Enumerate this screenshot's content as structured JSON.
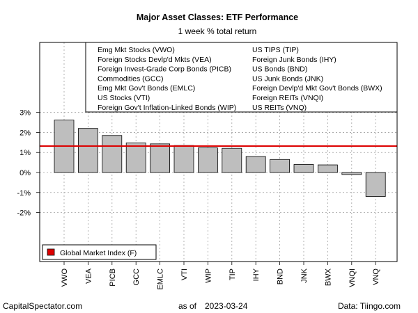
{
  "chart_data": {
    "type": "bar",
    "title": "Major Asset Classes: ETF Performance",
    "subtitle": "1 week % total return",
    "categories": [
      "VWO",
      "VEA",
      "PICB",
      "GCC",
      "EMLC",
      "VTI",
      "WIP",
      "TIP",
      "IHY",
      "BND",
      "JNK",
      "BWX",
      "VNQI",
      "VNQ"
    ],
    "values": [
      2.62,
      2.2,
      1.85,
      1.48,
      1.43,
      1.35,
      1.23,
      1.21,
      0.8,
      0.65,
      0.4,
      0.38,
      -0.1,
      -1.2
    ],
    "ylim": [
      -4.45,
      6.5
    ],
    "yticks": [
      3,
      2,
      1,
      0,
      -1,
      -2
    ],
    "ytick_labels": [
      "3%",
      "2%",
      "1%",
      "0%",
      "-1%",
      "-2%"
    ],
    "reference_line": {
      "name": "Global Market Index (F)",
      "value": 1.32,
      "color": "#dd0000"
    },
    "bar_color": "#bebebe",
    "grid": true,
    "legend": {
      "placement": "top",
      "columns": [
        [
          "Emg Mkt Stocks (VWO)",
          "Foreign Stocks Devlp'd Mkts (VEA)",
          "Foreign Invest-Grade Corp Bonds (PICB)",
          "Commodities (GCC)",
          "Emg Mkt Gov't Bonds (EMLC)",
          "US Stocks (VTI)",
          "Foreign Gov't Inflation-Linked Bonds (WIP)"
        ],
        [
          "US TIPS (TIP)",
          "Foreign Junk Bonds (IHY)",
          "US Bonds (BND)",
          "US Junk Bonds (JNK)",
          "Foreign Devlp'd Mkt Gov't Bonds (BWX)",
          "Foreign REITs (VNQI)",
          "US REITs (VNQ)"
        ]
      ]
    }
  },
  "footer": {
    "left": "CapitalSpectator.com",
    "center_prefix": "as of",
    "center_date": "2023-03-24",
    "right": "Data: Tiingo.com"
  }
}
